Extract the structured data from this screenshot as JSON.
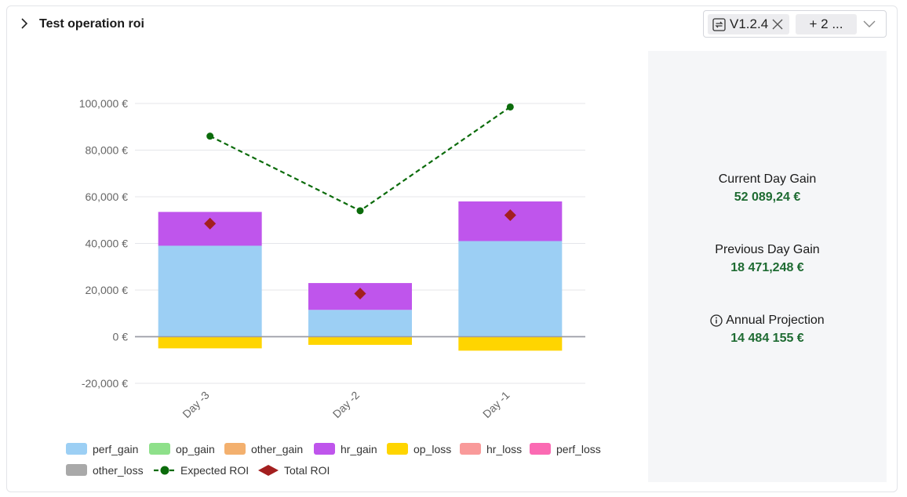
{
  "header": {
    "title": "Test operation roi",
    "version_tag": "V1.2.4",
    "more_tag": "+ 2 ..."
  },
  "stats": [
    {
      "label": "Current Day Gain",
      "value": "52 089,24 €",
      "info": false
    },
    {
      "label": "Previous Day Gain",
      "value": "18 471,248 €",
      "info": false
    },
    {
      "label": "Annual Projection",
      "value": "14 484 155 €",
      "info": true
    }
  ],
  "colors": {
    "perf_gain": "#9ccff4",
    "op_gain": "#8ee08a",
    "other_gain": "#f3b06e",
    "hr_gain": "#bf55ec",
    "op_loss": "#ffd500",
    "hr_loss": "#f99a9a",
    "perf_loss": "#fb6ab3",
    "other_loss": "#a9a9a9",
    "expected_roi": "#0b6b0b",
    "total_roi": "#a31f1f",
    "value_text": "#1e6b32"
  },
  "chart_data": {
    "type": "bar",
    "stacked": true,
    "categories": [
      "Day -3",
      "Day -2",
      "Day -1"
    ],
    "ylim": [
      -20000,
      100000
    ],
    "yticks": [
      -20000,
      0,
      20000,
      40000,
      60000,
      80000,
      100000
    ],
    "ytick_labels": [
      "-20,000 €",
      "0 €",
      "20,000 €",
      "40,000 €",
      "60,000 €",
      "80,000 €",
      "100,000 €"
    ],
    "grid": true,
    "legend_position": "bottom",
    "series": [
      {
        "name": "perf_gain",
        "kind": "bar",
        "values": [
          39000,
          11500,
          41000
        ]
      },
      {
        "name": "op_gain",
        "kind": "bar",
        "values": [
          0,
          0,
          0
        ]
      },
      {
        "name": "other_gain",
        "kind": "bar",
        "values": [
          0,
          0,
          0
        ]
      },
      {
        "name": "hr_gain",
        "kind": "bar",
        "values": [
          14500,
          11500,
          17000
        ]
      },
      {
        "name": "op_loss",
        "kind": "bar",
        "values": [
          -5000,
          -3500,
          -6000
        ]
      },
      {
        "name": "hr_loss",
        "kind": "bar",
        "values": [
          0,
          0,
          0
        ]
      },
      {
        "name": "perf_loss",
        "kind": "bar",
        "values": [
          0,
          0,
          0
        ]
      },
      {
        "name": "other_loss",
        "kind": "bar",
        "values": [
          0,
          0,
          0
        ]
      },
      {
        "name": "Expected ROI",
        "kind": "line",
        "values": [
          86000,
          54000,
          98500
        ]
      },
      {
        "name": "Total ROI",
        "kind": "marker",
        "values": [
          48500,
          18500,
          52100
        ]
      }
    ]
  }
}
